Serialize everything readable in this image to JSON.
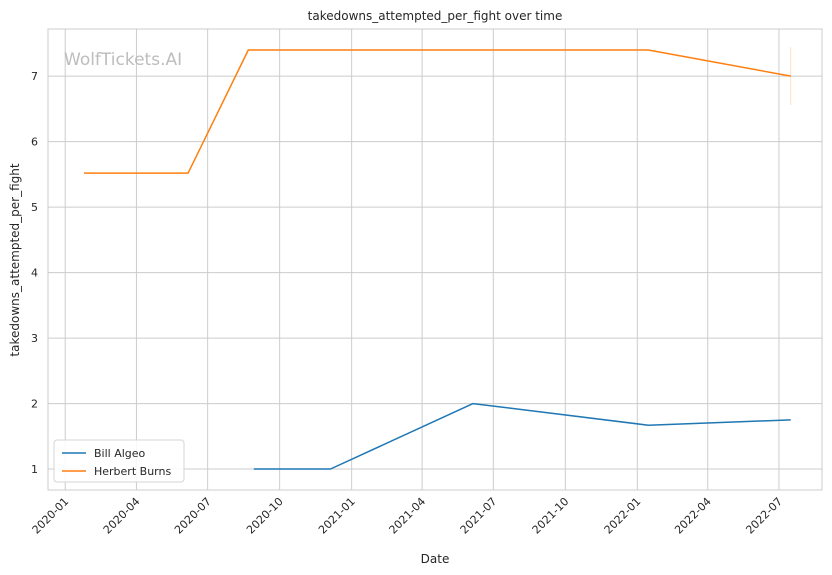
{
  "chart_data": {
    "type": "line",
    "title": "takedowns_attempted_per_fight over time",
    "xlabel": "Date",
    "ylabel": "takedowns_attempted_per_fight",
    "watermark": "WolfTickets.AI",
    "x_ticks": [
      "2020-01",
      "2020-04",
      "2020-07",
      "2020-10",
      "2021-01",
      "2021-04",
      "2021-07",
      "2021-10",
      "2022-01",
      "2022-04",
      "2022-07"
    ],
    "y_ticks": [
      1,
      2,
      3,
      4,
      5,
      6,
      7
    ],
    "xlim": [
      "2019-12-10",
      "2022-08-25"
    ],
    "ylim": [
      0.68,
      7.72
    ],
    "grid": true,
    "legend_position": "lower-left",
    "series": [
      {
        "name": "Bill Algeo",
        "color": "#1f77b4",
        "points": [
          {
            "x": "2020-08-29",
            "y": 1.0
          },
          {
            "x": "2020-12-05",
            "y": 1.0
          },
          {
            "x": "2021-06-05",
            "y": 2.0
          },
          {
            "x": "2022-01-15",
            "y": 1.67
          },
          {
            "x": "2022-07-16",
            "y": 1.75
          }
        ]
      },
      {
        "name": "Herbert Burns",
        "color": "#ff7f0e",
        "points": [
          {
            "x": "2020-01-25",
            "y": 5.52
          },
          {
            "x": "2020-06-06",
            "y": 5.52
          },
          {
            "x": "2020-08-22",
            "y": 7.4
          },
          {
            "x": "2022-01-15",
            "y": 7.4
          },
          {
            "x": "2022-07-16",
            "y": 7.0
          }
        ]
      }
    ],
    "annotations": [
      {
        "x": "2022-07-16",
        "y_range": [
          6.56,
          7.44
        ],
        "color": "#ff7f0e",
        "note": "error-bar"
      }
    ]
  }
}
